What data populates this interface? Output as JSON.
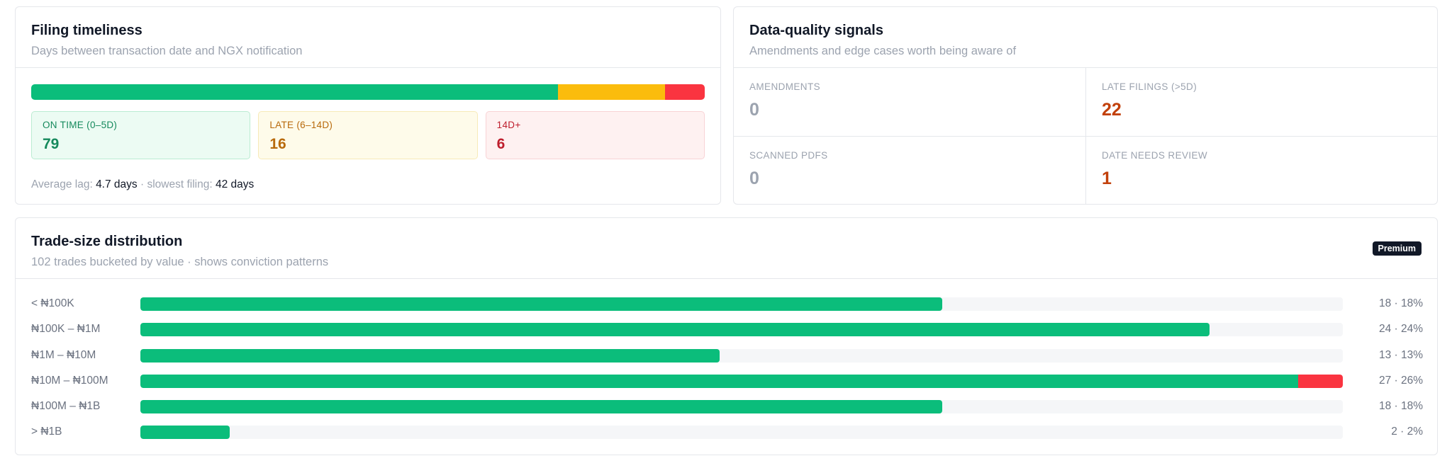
{
  "timeliness": {
    "title": "Filing timeliness",
    "subtitle": "Days between transaction date and NGX notification",
    "bar": [
      {
        "key": "on_time",
        "value": 79,
        "color": "#0bbd7b"
      },
      {
        "key": "late",
        "value": 16,
        "color": "#fbbc0d"
      },
      {
        "key": "very_late",
        "value": 6,
        "color": "#fa3440"
      }
    ],
    "tiles": {
      "on_time": {
        "label": "ON TIME (0–5D)",
        "value": "79"
      },
      "late": {
        "label": "LATE (6–14D)",
        "value": "16"
      },
      "very_late": {
        "label": "14D+",
        "value": "6"
      }
    },
    "lag": {
      "avg_label": "Average lag:",
      "avg_value": "4.7 days",
      "sep": "·",
      "slowest_label": "slowest filing:",
      "slowest_value": "42 days"
    }
  },
  "quality": {
    "title": "Data-quality signals",
    "subtitle": "Amendments and edge cases worth being aware of",
    "cells": [
      {
        "label": "AMENDMENTS",
        "value": "0",
        "color": "#9ca3af"
      },
      {
        "label": "LATE FILINGS (>5D)",
        "value": "22",
        "color": "#c2410c"
      },
      {
        "label": "SCANNED PDFS",
        "value": "0",
        "color": "#9ca3af"
      },
      {
        "label": "DATE NEEDS REVIEW",
        "value": "1",
        "color": "#c2410c"
      }
    ]
  },
  "tradesize": {
    "title": "Trade-size distribution",
    "subtitle": "102 trades bucketed by value · shows conviction patterns",
    "badge": "Premium",
    "scale_max": 27,
    "rows": [
      {
        "label": "< ₦100K",
        "count": 18,
        "red": 0,
        "value_text": "18 · 18%"
      },
      {
        "label": "₦100K – ₦1M",
        "count": 24,
        "red": 0,
        "value_text": "24 · 24%"
      },
      {
        "label": "₦1M – ₦10M",
        "count": 13,
        "red": 0,
        "value_text": "13 · 13%"
      },
      {
        "label": "₦10M – ₦100M",
        "count": 27,
        "red": 1,
        "value_text": "27 · 26%"
      },
      {
        "label": "₦100M – ₦1B",
        "count": 18,
        "red": 0,
        "value_text": "18 · 18%"
      },
      {
        "label": "> ₦1B",
        "count": 2,
        "red": 0,
        "value_text": "2 · 2%"
      }
    ]
  }
}
